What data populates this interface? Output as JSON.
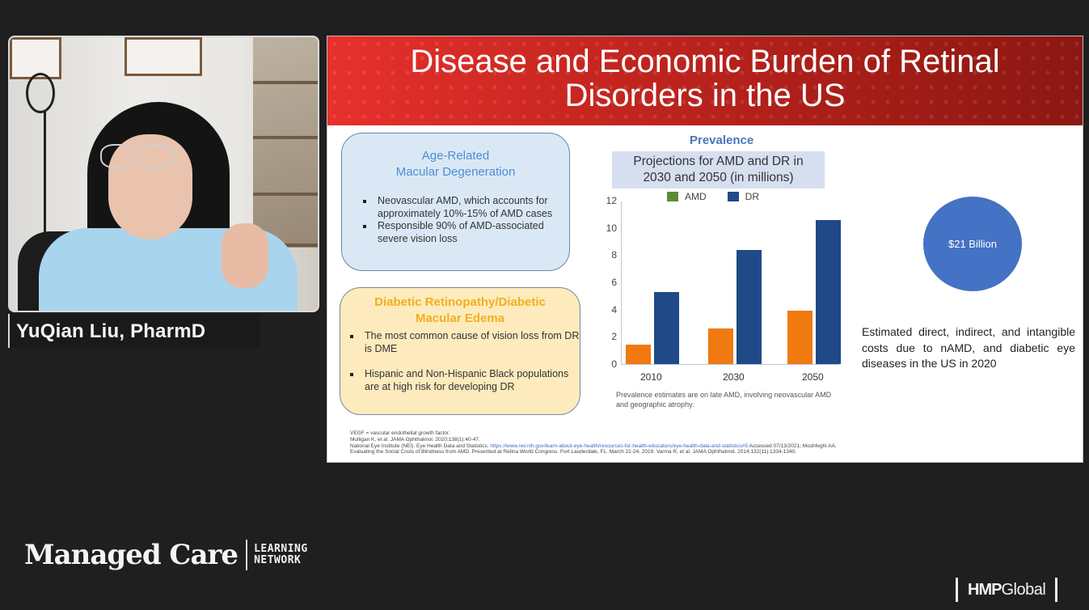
{
  "participant": {
    "name": "YuQian Liu, PharmD"
  },
  "slide": {
    "title": "Disease and Economic Burden of Retinal Disorders in the US",
    "title_line1": "Disease and Economic Burden of Retinal",
    "title_line2": "Disorders in the US",
    "amd_box": {
      "heading_line1": "Age-Related",
      "heading_line2": "Macular Degeneration",
      "bullets": [
        "Neovascular AMD, which accounts for approximately 10%-15% of AMD cases",
        "Responsible 90% of AMD-associated severe vision loss"
      ]
    },
    "dr_box": {
      "heading_line1": "Diabetic Retinopathy/Diabetic",
      "heading_line2": "Macular Edema",
      "bullets": [
        "The most common cause of vision loss from DR is DME",
        "Hispanic and Non-Hispanic Black populations are at high risk for developing DR"
      ]
    },
    "prevalence_label": "Prevalence",
    "chart_title_line1": "Projections for AMD and DR in",
    "chart_title_line2": "2030 and 2050 (in millions)",
    "chart_note": "Prevalence estimates are on late AMD, involving neovascular AMD and geographic atrophy.",
    "cost": {
      "value": "$21 Billion",
      "description": "Estimated direct, indirect, and intangible costs due to nAMD, and diabetic eye diseases in the US in 2020"
    },
    "references": {
      "line1": "VEGF = vascular endothelial growth factor.",
      "line2": "Mulligan K, et al. JAMA Ophthalmol. 2020;138(1):40-47.",
      "line3_prefix": "National Eye Institute (NEI). Eye Health Data and Statistics.",
      "line3_link": "https://www.nei.nih.gov/learn-about-eye-health/resources-for-health-educators/eye-health-data-and-statistics#5",
      "line3_suffix": "Accessed 07/13/2021; Moshfeghi AA.",
      "line4": "Evaluating the Social Costs of Blindness from AMD. Presented at Retina World Congress. Fort Lauderdale, FL. March 21-24, 2019. Varma R, et al. JAMA Ophthalmol. 2014;132(11):1334-1340."
    }
  },
  "branding": {
    "managed_care": "Managed Care",
    "learning": "LEARNING",
    "network": "NETWORK",
    "hmp_mark": "HMP",
    "hmp_global": "Global"
  },
  "colors": {
    "amd_legend": "#5b8c32",
    "amd_bar": "#f07a10",
    "dr": "#1f4a87",
    "cost_circle": "#4472c4",
    "header_red": "#c62620"
  },
  "chart_data": {
    "type": "bar",
    "title": "Projections for AMD and DR in 2030 and 2050 (in millions)",
    "categories": [
      "2010",
      "2030",
      "2050"
    ],
    "series": [
      {
        "name": "AMD",
        "values": [
          1.4,
          2.6,
          3.9
        ]
      },
      {
        "name": "DR",
        "values": [
          5.3,
          8.4,
          10.6
        ]
      }
    ],
    "xlabel": "",
    "ylabel": "",
    "ylim": [
      0,
      12
    ],
    "yticks": [
      0,
      2,
      4,
      6,
      8,
      10,
      12
    ],
    "legend": [
      "AMD",
      "DR"
    ],
    "legend_position": "top",
    "grid": false,
    "note": "Prevalence estimates are on late AMD, involving neovascular AMD and geographic atrophy."
  }
}
